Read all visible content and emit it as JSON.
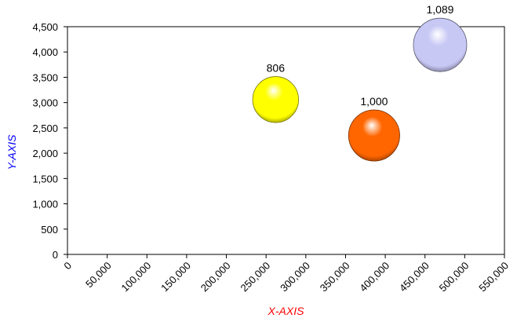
{
  "chart_data": {
    "type": "scatter",
    "subtype": "bubble",
    "xlabel": "X-AXIS",
    "ylabel": "Y-AXIS",
    "xlim": [
      0,
      550000
    ],
    "ylim": [
      0,
      4500
    ],
    "x_ticks": [
      "0",
      "50,000",
      "100,000",
      "150,000",
      "200,000",
      "250,000",
      "300,000",
      "350,000",
      "400,000",
      "450,000",
      "500,000",
      "550,000"
    ],
    "y_ticks": [
      "0",
      "500",
      "1,000",
      "1,500",
      "2,000",
      "2,500",
      "3,000",
      "3,500",
      "4,000",
      "4,500"
    ],
    "grid": false,
    "legend": "none",
    "xlabel_color": "#ff0000",
    "ylabel_color": "#0000ff",
    "points": [
      {
        "x": 262000,
        "y": 3060,
        "size": 806,
        "label": "806",
        "color": "#ffff00"
      },
      {
        "x": 386000,
        "y": 2350,
        "size": 1000,
        "label": "1,000",
        "color": "#ff6600"
      },
      {
        "x": 469000,
        "y": 4140,
        "size": 1089,
        "label": "1,089",
        "color": "#c8c8f5"
      }
    ]
  }
}
